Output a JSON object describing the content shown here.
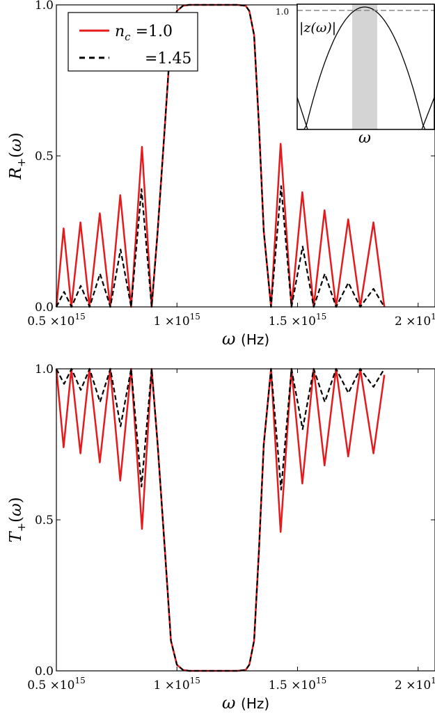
{
  "chart_data": [
    {
      "type": "line",
      "ylabel": "R+(ω)",
      "xlabel": "ω (Hz)",
      "xlabel_symbol": "ω",
      "xlabel_unit": "(Hz)",
      "ylim": [
        0,
        1.0
      ],
      "xlim": [
        500000000000000.0,
        2070000000000000.0
      ],
      "yticks": [
        "0.0",
        "0.5",
        "1.0"
      ],
      "xticks": [
        "0.5 ×10",
        "1 ×10",
        "1.5 ×10",
        "2 ×10"
      ],
      "xtick_exponent": "15",
      "legend": {
        "position": "top-left",
        "entries": [
          "n_c =1.0",
          "=1.45"
        ]
      },
      "series": [
        {
          "name": "n_c =1.0",
          "color": "#e41a1c",
          "style": "solid",
          "points": [
            [
              500000000000000.0,
              0.0
            ],
            [
              530000000000000.0,
              0.26
            ],
            [
              562000000000000.0,
              0.0
            ],
            [
              600000000000000.0,
              0.28
            ],
            [
              637000000000000.0,
              0.0
            ],
            [
              680000000000000.0,
              0.31
            ],
            [
              723000000000000.0,
              0.0
            ],
            [
              765000000000000.0,
              0.37
            ],
            [
              810000000000000.0,
              0.0
            ],
            [
              855000000000000.0,
              0.53
            ],
            [
              895000000000000.0,
              0.0
            ],
            [
              920000000000000.0,
              0.25
            ],
            [
              950000000000000.0,
              0.6
            ],
            [
              975000000000000.0,
              0.9
            ],
            [
              1000000000000000.0,
              0.98
            ],
            [
              1025000000000000.0,
              0.997
            ],
            [
              1050000000000000.0,
              1.0
            ],
            [
              1250000000000000.0,
              1.0
            ],
            [
              1285000000000000.0,
              0.997
            ],
            [
              1300000000000000.0,
              0.98
            ],
            [
              1320000000000000.0,
              0.9
            ],
            [
              1340000000000000.0,
              0.6
            ],
            [
              1360000000000000.0,
              0.25
            ],
            [
              1390000000000000.0,
              0.0
            ],
            [
              1430000000000000.0,
              0.54
            ],
            [
              1475000000000000.0,
              0.0
            ],
            [
              1520000000000000.0,
              0.38
            ],
            [
              1567000000000000.0,
              0.0
            ],
            [
              1612000000000000.0,
              0.32
            ],
            [
              1660000000000000.0,
              0.0
            ],
            [
              1710000000000000.0,
              0.29
            ],
            [
              1760000000000000.0,
              0.0
            ],
            [
              1815000000000000.0,
              0.28
            ],
            [
              1860000000000000.0,
              0.0
            ]
          ]
        },
        {
          "name": "=1.45",
          "color": "#000000",
          "style": "dashed",
          "points": [
            [
              500000000000000.0,
              0.0
            ],
            [
              532000000000000.0,
              0.05
            ],
            [
              563000000000000.0,
              0.0
            ],
            [
              601000000000000.0,
              0.07
            ],
            [
              638000000000000.0,
              0.0
            ],
            [
              681000000000000.0,
              0.11
            ],
            [
              724000000000000.0,
              0.0
            ],
            [
              766000000000000.0,
              0.19
            ],
            [
              810000000000000.0,
              0.0
            ],
            [
              853000000000000.0,
              0.39
            ],
            [
              895000000000000.0,
              0.0
            ],
            [
              920000000000000.0,
              0.25
            ],
            [
              950000000000000.0,
              0.6
            ],
            [
              975000000000000.0,
              0.9
            ],
            [
              1000000000000000.0,
              0.98
            ],
            [
              1025000000000000.0,
              0.997
            ],
            [
              1050000000000000.0,
              1.0
            ],
            [
              1250000000000000.0,
              1.0
            ],
            [
              1285000000000000.0,
              0.997
            ],
            [
              1300000000000000.0,
              0.98
            ],
            [
              1320000000000000.0,
              0.9
            ],
            [
              1340000000000000.0,
              0.6
            ],
            [
              1360000000000000.0,
              0.25
            ],
            [
              1390000000000000.0,
              0.0
            ],
            [
              1432000000000000.0,
              0.4
            ],
            [
              1475000000000000.0,
              0.0
            ],
            [
              1521000000000000.0,
              0.2
            ],
            [
              1567000000000000.0,
              0.0
            ],
            [
              1613000000000000.0,
              0.11
            ],
            [
              1660000000000000.0,
              0.0
            ],
            [
              1711000000000000.0,
              0.08
            ],
            [
              1760000000000000.0,
              0.0
            ],
            [
              1815000000000000.0,
              0.06
            ],
            [
              1860000000000000.0,
              0.0
            ]
          ]
        }
      ],
      "inset": {
        "ylabel": "|z(ω)|",
        "xlabel": "ω",
        "ytick": "1.0",
        "dashed_level": 1.0,
        "shaded_band": "grey",
        "shaded_color": "#d4d4d4"
      }
    },
    {
      "type": "line",
      "ylabel": "T+(ω)",
      "xlabel": "ω (Hz)",
      "xlabel_symbol": "ω",
      "xlabel_unit": "(Hz)",
      "ylim": [
        0,
        1.0
      ],
      "xlim": [
        500000000000000.0,
        2070000000000000.0
      ],
      "yticks": [
        "0.0",
        "0.5",
        "1.0"
      ],
      "xticks": [
        "0.5 ×10",
        "1 ×10",
        "1.5 ×10",
        "2 ×10"
      ],
      "xtick_exponent": "15",
      "series": [
        {
          "name": "n_c =1.0",
          "color": "#e41a1c",
          "style": "solid",
          "points": [
            [
              500000000000000.0,
              1.0
            ],
            [
              530000000000000.0,
              0.74
            ],
            [
              562000000000000.0,
              1.0
            ],
            [
              600000000000000.0,
              0.72
            ],
            [
              637000000000000.0,
              1.0
            ],
            [
              680000000000000.0,
              0.69
            ],
            [
              723000000000000.0,
              1.0
            ],
            [
              765000000000000.0,
              0.63
            ],
            [
              810000000000000.0,
              1.0
            ],
            [
              855000000000000.0,
              0.47
            ],
            [
              895000000000000.0,
              1.0
            ],
            [
              920000000000000.0,
              0.75
            ],
            [
              950000000000000.0,
              0.4
            ],
            [
              975000000000000.0,
              0.1
            ],
            [
              1000000000000000.0,
              0.02
            ],
            [
              1025000000000000.0,
              0.003
            ],
            [
              1050000000000000.0,
              0.0
            ],
            [
              1250000000000000.0,
              0.0
            ],
            [
              1285000000000000.0,
              0.003
            ],
            [
              1300000000000000.0,
              0.02
            ],
            [
              1320000000000000.0,
              0.1
            ],
            [
              1340000000000000.0,
              0.4
            ],
            [
              1360000000000000.0,
              0.75
            ],
            [
              1390000000000000.0,
              1.0
            ],
            [
              1430000000000000.0,
              0.46
            ],
            [
              1475000000000000.0,
              1.0
            ],
            [
              1520000000000000.0,
              0.62
            ],
            [
              1567000000000000.0,
              1.0
            ],
            [
              1612000000000000.0,
              0.68
            ],
            [
              1660000000000000.0,
              1.0
            ],
            [
              1710000000000000.0,
              0.71
            ],
            [
              1760000000000000.0,
              1.0
            ],
            [
              1815000000000000.0,
              0.72
            ],
            [
              1860000000000000.0,
              0.98
            ]
          ]
        },
        {
          "name": "=1.45",
          "color": "#000000",
          "style": "dashed",
          "points": [
            [
              500000000000000.0,
              1.0
            ],
            [
              532000000000000.0,
              0.95
            ],
            [
              563000000000000.0,
              1.0
            ],
            [
              601000000000000.0,
              0.93
            ],
            [
              638000000000000.0,
              1.0
            ],
            [
              681000000000000.0,
              0.89
            ],
            [
              724000000000000.0,
              1.0
            ],
            [
              766000000000000.0,
              0.81
            ],
            [
              810000000000000.0,
              1.0
            ],
            [
              853000000000000.0,
              0.61
            ],
            [
              895000000000000.0,
              1.0
            ],
            [
              920000000000000.0,
              0.75
            ],
            [
              950000000000000.0,
              0.4
            ],
            [
              975000000000000.0,
              0.1
            ],
            [
              1000000000000000.0,
              0.02
            ],
            [
              1025000000000000.0,
              0.003
            ],
            [
              1050000000000000.0,
              0.0
            ],
            [
              1250000000000000.0,
              0.0
            ],
            [
              1285000000000000.0,
              0.003
            ],
            [
              1300000000000000.0,
              0.02
            ],
            [
              1320000000000000.0,
              0.1
            ],
            [
              1340000000000000.0,
              0.4
            ],
            [
              1360000000000000.0,
              0.75
            ],
            [
              1390000000000000.0,
              1.0
            ],
            [
              1432000000000000.0,
              0.6
            ],
            [
              1475000000000000.0,
              1.0
            ],
            [
              1521000000000000.0,
              0.8
            ],
            [
              1567000000000000.0,
              1.0
            ],
            [
              1613000000000000.0,
              0.89
            ],
            [
              1660000000000000.0,
              1.0
            ],
            [
              1711000000000000.0,
              0.92
            ],
            [
              1760000000000000.0,
              1.0
            ],
            [
              1815000000000000.0,
              0.94
            ],
            [
              1860000000000000.0,
              1.0
            ]
          ]
        }
      ]
    }
  ]
}
